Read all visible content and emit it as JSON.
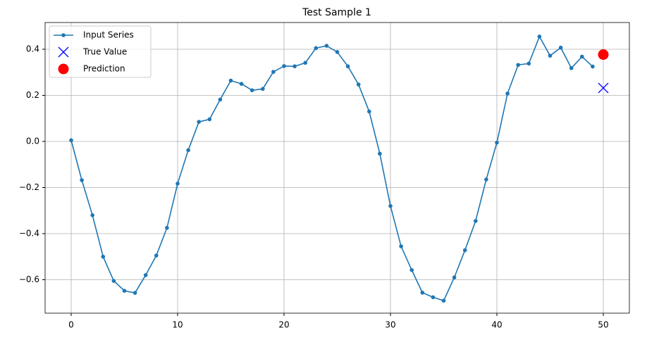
{
  "chart_data": {
    "type": "line",
    "title": "Test Sample 1",
    "series": [
      {
        "name": "Input Series",
        "color": "#1f77b4",
        "mode": "line-dot",
        "x": [
          0,
          1,
          2,
          3,
          4,
          5,
          6,
          7,
          8,
          9,
          10,
          11,
          12,
          13,
          14,
          15,
          16,
          17,
          18,
          19,
          20,
          21,
          22,
          23,
          24,
          25,
          26,
          27,
          28,
          29,
          30,
          31,
          32,
          33,
          34,
          35,
          36,
          37,
          38,
          39,
          40,
          41,
          42,
          43,
          44,
          45,
          46,
          47,
          48,
          49
        ],
        "values": [
          0.005,
          -0.168,
          -0.32,
          -0.5,
          -0.605,
          -0.648,
          -0.657,
          -0.58,
          -0.495,
          -0.375,
          -0.183,
          -0.038,
          0.085,
          0.096,
          0.182,
          0.264,
          0.25,
          0.222,
          0.228,
          0.302,
          0.327,
          0.326,
          0.341,
          0.405,
          0.415,
          0.388,
          0.326,
          0.247,
          0.13,
          -0.053,
          -0.28,
          -0.455,
          -0.558,
          -0.656,
          -0.676,
          -0.691,
          -0.59,
          -0.472,
          -0.345,
          -0.165,
          -0.005,
          0.208,
          0.332,
          0.338,
          0.455,
          0.372,
          0.407,
          0.318,
          0.368,
          0.325
        ]
      },
      {
        "name": "True Value",
        "color": "#0000ff",
        "mode": "cross",
        "x": [
          50
        ],
        "values": [
          0.232
        ]
      },
      {
        "name": "Prediction",
        "color": "#ff0000",
        "mode": "dot",
        "x": [
          50
        ],
        "values": [
          0.377
        ]
      }
    ],
    "xlim": [
      -2.45,
      52.45
    ],
    "ylim": [
      -0.745,
      0.516
    ],
    "xticks": [
      0,
      10,
      20,
      30,
      40,
      50
    ],
    "yticks": [
      {
        "value": -0.6,
        "label": "−0.6"
      },
      {
        "value": -0.4,
        "label": "−0.4"
      },
      {
        "value": -0.2,
        "label": "−0.2"
      },
      {
        "value": 0,
        "label": "0.0"
      },
      {
        "value": 0.2,
        "label": "0.2"
      },
      {
        "value": 0.4,
        "label": "0.4"
      }
    ],
    "grid": true,
    "legend": "upper-left"
  }
}
